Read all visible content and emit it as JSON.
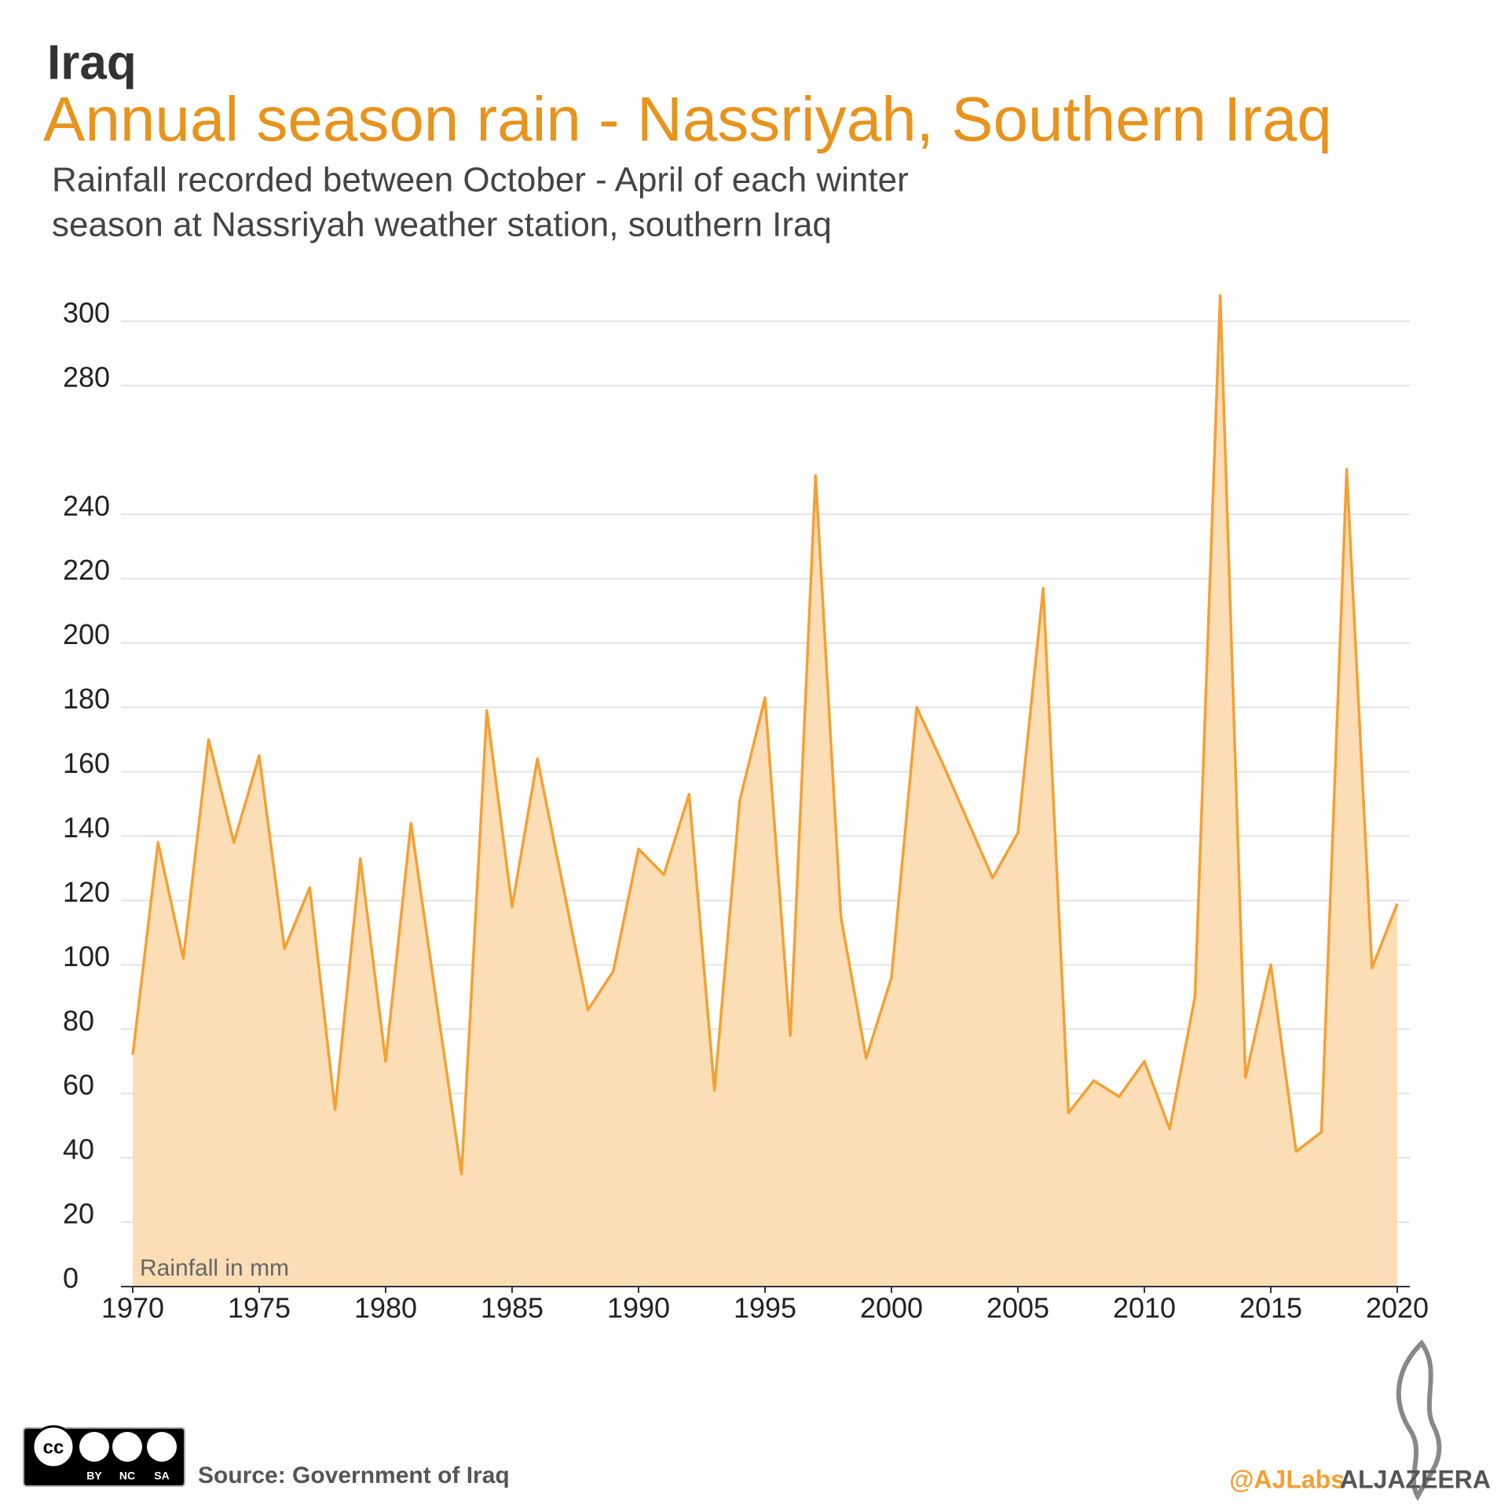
{
  "header": "Iraq",
  "chart_data": {
    "type": "area",
    "title": "Annual season rain - Nassriyah, Southern Iraq",
    "subtitle": [
      "Rainfall recorded between October - April of each winter",
      "season at Nassriyah weather station, southern Iraq"
    ],
    "y_label": "Rainfall in mm",
    "x": [
      1970,
      1971,
      1972,
      1973,
      1974,
      1975,
      1976,
      1977,
      1978,
      1979,
      1980,
      1981,
      1982,
      1983,
      1984,
      1985,
      1986,
      1987,
      1988,
      1989,
      1990,
      1991,
      1992,
      1993,
      1994,
      1995,
      1996,
      1997,
      1998,
      1999,
      2000,
      2001,
      2002,
      2003,
      2004,
      2005,
      2006,
      2007,
      2008,
      2009,
      2010,
      2011,
      2012,
      2013,
      2014,
      2015,
      2016,
      2017,
      2018,
      2019,
      2020
    ],
    "values": [
      72,
      138,
      102,
      170,
      138,
      165,
      105,
      124,
      55,
      133,
      70,
      144,
      89,
      35,
      179,
      118,
      164,
      125,
      86,
      98,
      136,
      128,
      153,
      61,
      151,
      183,
      78,
      252,
      115,
      71,
      96,
      180,
      163,
      145,
      127,
      141,
      217,
      54,
      64,
      59,
      70,
      49,
      90,
      308,
      65,
      100,
      42,
      48,
      254,
      99,
      119
    ],
    "color": "#f5a033",
    "fill": "#fbdeb5",
    "xlim": [
      1970,
      2020
    ],
    "xticks": [
      1970,
      1975,
      1980,
      1985,
      1990,
      1995,
      2000,
      2005,
      2010,
      2015,
      2020
    ],
    "ylim": [
      0,
      300
    ],
    "yticks": [
      0,
      20,
      40,
      60,
      80,
      100,
      120,
      140,
      160,
      180,
      200,
      220,
      240,
      280,
      300
    ],
    "grid": true
  },
  "footer": {
    "source": "Source: Government of Iraq",
    "handle": "@AJLabs",
    "brand": "ALJAZEERA",
    "license": [
      "BY",
      "NC",
      "SA"
    ]
  }
}
